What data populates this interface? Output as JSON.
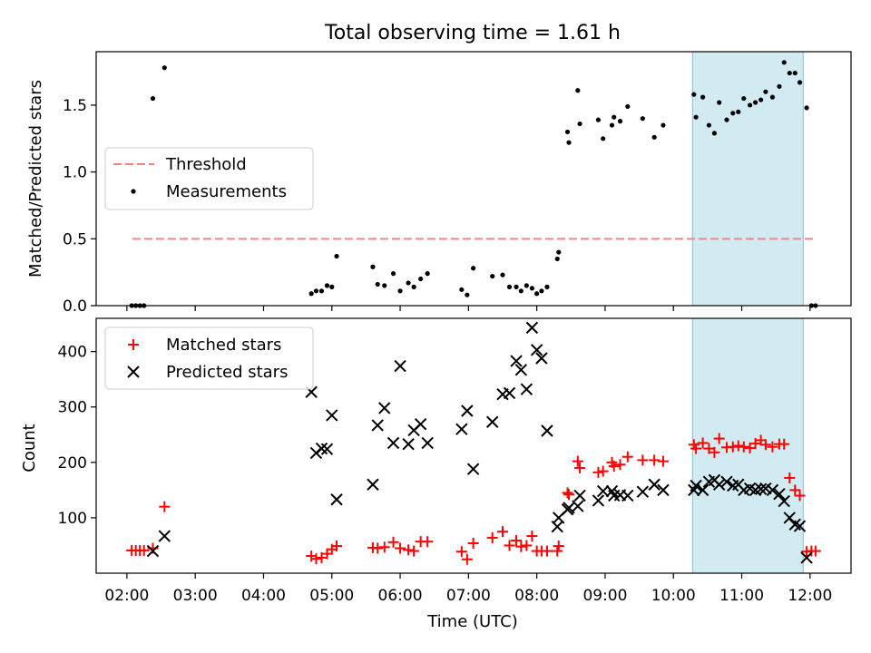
{
  "title": "Total observing time = 1.61 h",
  "chart_data": [
    {
      "type": "scatter",
      "ylabel": "Matched/Predicted stars",
      "xlim": [
        1.55,
        12.6
      ],
      "ylim": [
        0.0,
        1.9
      ],
      "yticks": [
        0.0,
        0.5,
        1.0,
        1.5
      ],
      "ytick_labels": [
        "0.0",
        "0.5",
        "1.0",
        "1.5"
      ],
      "grid": false,
      "legend_location": "center-left",
      "threshold": {
        "name": "Threshold",
        "value": 0.5,
        "x_range": [
          2.08,
          12.08
        ],
        "color": "#ff7f7f",
        "style": "dashed"
      },
      "shaded_region": {
        "x_range": [
          10.28,
          11.9
        ],
        "color": "#add8e6"
      },
      "series": [
        {
          "name": "Measurements",
          "marker": "dot",
          "color": "#000000",
          "points": [
            [
              2.07,
              0.0
            ],
            [
              2.13,
              0.0
            ],
            [
              2.19,
              0.0
            ],
            [
              2.25,
              0.0
            ],
            [
              2.38,
              1.55
            ],
            [
              2.55,
              1.78
            ],
            [
              4.7,
              0.09
            ],
            [
              4.77,
              0.11
            ],
            [
              4.85,
              0.11
            ],
            [
              4.93,
              0.15
            ],
            [
              5.0,
              0.14
            ],
            [
              5.07,
              0.37
            ],
            [
              5.6,
              0.29
            ],
            [
              5.67,
              0.16
            ],
            [
              5.77,
              0.15
            ],
            [
              5.9,
              0.24
            ],
            [
              6.0,
              0.11
            ],
            [
              6.12,
              0.17
            ],
            [
              6.2,
              0.14
            ],
            [
              6.3,
              0.2
            ],
            [
              6.4,
              0.24
            ],
            [
              6.9,
              0.12
            ],
            [
              6.98,
              0.08
            ],
            [
              7.07,
              0.28
            ],
            [
              7.35,
              0.22
            ],
            [
              7.5,
              0.23
            ],
            [
              7.6,
              0.14
            ],
            [
              7.7,
              0.14
            ],
            [
              7.77,
              0.11
            ],
            [
              7.85,
              0.15
            ],
            [
              7.93,
              0.13
            ],
            [
              8.0,
              0.09
            ],
            [
              8.07,
              0.11
            ],
            [
              8.15,
              0.14
            ],
            [
              8.3,
              0.35
            ],
            [
              8.32,
              0.4
            ],
            [
              8.45,
              1.3
            ],
            [
              8.47,
              1.22
            ],
            [
              8.6,
              1.61
            ],
            [
              8.63,
              1.36
            ],
            [
              8.9,
              1.39
            ],
            [
              8.97,
              1.25
            ],
            [
              9.1,
              1.35
            ],
            [
              9.13,
              1.41
            ],
            [
              9.22,
              1.38
            ],
            [
              9.33,
              1.49
            ],
            [
              9.55,
              1.4
            ],
            [
              9.72,
              1.26
            ],
            [
              9.85,
              1.35
            ],
            [
              10.3,
              1.58
            ],
            [
              10.33,
              1.41
            ],
            [
              10.43,
              1.56
            ],
            [
              10.52,
              1.35
            ],
            [
              10.6,
              1.29
            ],
            [
              10.67,
              1.52
            ],
            [
              10.78,
              1.39
            ],
            [
              10.87,
              1.44
            ],
            [
              10.95,
              1.45
            ],
            [
              11.03,
              1.55
            ],
            [
              11.12,
              1.5
            ],
            [
              11.2,
              1.52
            ],
            [
              11.28,
              1.54
            ],
            [
              11.35,
              1.6
            ],
            [
              11.45,
              1.56
            ],
            [
              11.55,
              1.64
            ],
            [
              11.62,
              1.82
            ],
            [
              11.7,
              1.74
            ],
            [
              11.78,
              1.74
            ],
            [
              11.85,
              1.67
            ],
            [
              11.95,
              1.48
            ],
            [
              12.02,
              0.0
            ],
            [
              12.08,
              0.0
            ]
          ]
        }
      ]
    },
    {
      "type": "scatter",
      "xlabel": "Time (UTC)",
      "ylabel": "Count",
      "xlim": [
        1.55,
        12.6
      ],
      "ylim": [
        0,
        460
      ],
      "yticks": [
        100,
        200,
        300,
        400
      ],
      "ytick_labels": [
        "100",
        "200",
        "300",
        "400"
      ],
      "xticks": [
        2,
        3,
        4,
        5,
        6,
        7,
        8,
        9,
        10,
        11,
        12
      ],
      "xtick_labels": [
        "02:00",
        "03:00",
        "04:00",
        "05:00",
        "06:00",
        "07:00",
        "08:00",
        "09:00",
        "10:00",
        "11:00",
        "12:00"
      ],
      "grid": false,
      "legend_location": "top-left",
      "shaded_region": {
        "x_range": [
          10.28,
          11.9
        ],
        "color": "#add8e6"
      },
      "series": [
        {
          "name": "Matched stars",
          "marker": "plus",
          "color": "#ff0000",
          "points": [
            [
              2.07,
              41
            ],
            [
              2.13,
              41
            ],
            [
              2.19,
              41
            ],
            [
              2.25,
              41
            ],
            [
              2.38,
              45
            ],
            [
              2.55,
              120
            ],
            [
              4.7,
              31
            ],
            [
              4.77,
              26
            ],
            [
              4.85,
              28
            ],
            [
              4.93,
              35
            ],
            [
              5.0,
              43
            ],
            [
              5.07,
              49
            ],
            [
              5.6,
              46
            ],
            [
              5.67,
              45
            ],
            [
              5.77,
              47
            ],
            [
              5.9,
              56
            ],
            [
              6.0,
              45
            ],
            [
              6.12,
              42
            ],
            [
              6.2,
              40
            ],
            [
              6.3,
              57
            ],
            [
              6.4,
              57
            ],
            [
              6.9,
              39
            ],
            [
              6.98,
              25
            ],
            [
              7.07,
              54
            ],
            [
              7.35,
              64
            ],
            [
              7.5,
              75
            ],
            [
              7.6,
              50
            ],
            [
              7.7,
              59
            ],
            [
              7.77,
              48
            ],
            [
              7.85,
              50
            ],
            [
              7.93,
              67
            ],
            [
              8.0,
              40
            ],
            [
              8.07,
              40
            ],
            [
              8.15,
              40
            ],
            [
              8.3,
              40
            ],
            [
              8.32,
              49
            ],
            [
              8.45,
              145
            ],
            [
              8.47,
              142
            ],
            [
              8.6,
              202
            ],
            [
              8.63,
              190
            ],
            [
              8.9,
              182
            ],
            [
              8.97,
              184
            ],
            [
              9.1,
              200
            ],
            [
              9.13,
              193
            ],
            [
              9.22,
              196
            ],
            [
              9.33,
              210
            ],
            [
              9.55,
              204
            ],
            [
              9.72,
              204
            ],
            [
              9.85,
              202
            ],
            [
              10.3,
              232
            ],
            [
              10.33,
              225
            ],
            [
              10.43,
              235
            ],
            [
              10.52,
              225
            ],
            [
              10.6,
              218
            ],
            [
              10.67,
              243
            ],
            [
              10.78,
              227
            ],
            [
              10.87,
              228
            ],
            [
              10.95,
              230
            ],
            [
              11.03,
              228
            ],
            [
              11.12,
              226
            ],
            [
              11.2,
              234
            ],
            [
              11.28,
              240
            ],
            [
              11.35,
              232
            ],
            [
              11.45,
              228
            ],
            [
              11.55,
              233
            ],
            [
              11.62,
              233
            ],
            [
              11.7,
              172
            ],
            [
              11.78,
              150
            ],
            [
              11.85,
              140
            ],
            [
              11.95,
              39
            ],
            [
              12.02,
              40
            ],
            [
              12.08,
              40
            ]
          ]
        },
        {
          "name": "Predicted stars",
          "marker": "x",
          "color": "#000000",
          "points": [
            [
              2.38,
              40
            ],
            [
              2.55,
              67
            ],
            [
              4.7,
              327
            ],
            [
              4.77,
              217
            ],
            [
              4.85,
              225
            ],
            [
              4.93,
              224
            ],
            [
              5.0,
              285
            ],
            [
              5.07,
              133
            ],
            [
              5.6,
              160
            ],
            [
              5.67,
              267
            ],
            [
              5.77,
              298
            ],
            [
              5.9,
              235
            ],
            [
              6.0,
              374
            ],
            [
              6.12,
              233
            ],
            [
              6.2,
              258
            ],
            [
              6.3,
              269
            ],
            [
              6.4,
              235
            ],
            [
              6.9,
              260
            ],
            [
              6.98,
              293
            ],
            [
              7.07,
              188
            ],
            [
              7.35,
              273
            ],
            [
              7.5,
              323
            ],
            [
              7.6,
              325
            ],
            [
              7.7,
              383
            ],
            [
              7.77,
              367
            ],
            [
              7.85,
              332
            ],
            [
              7.93,
              443
            ],
            [
              8.0,
              403
            ],
            [
              8.07,
              388
            ],
            [
              8.15,
              257
            ],
            [
              8.3,
              84
            ],
            [
              8.32,
              100
            ],
            [
              8.45,
              115
            ],
            [
              8.47,
              118
            ],
            [
              8.6,
              121
            ],
            [
              8.63,
              140
            ],
            [
              8.9,
              131
            ],
            [
              8.97,
              148
            ],
            [
              9.1,
              148
            ],
            [
              9.13,
              140
            ],
            [
              9.22,
              141
            ],
            [
              9.33,
              140
            ],
            [
              9.55,
              147
            ],
            [
              9.72,
              160
            ],
            [
              9.85,
              150
            ],
            [
              10.3,
              150
            ],
            [
              10.33,
              158
            ],
            [
              10.43,
              150
            ],
            [
              10.52,
              165
            ],
            [
              10.6,
              168
            ],
            [
              10.67,
              160
            ],
            [
              10.78,
              165
            ],
            [
              10.87,
              158
            ],
            [
              10.95,
              160
            ],
            [
              11.03,
              150
            ],
            [
              11.12,
              153
            ],
            [
              11.2,
              150
            ],
            [
              11.28,
              152
            ],
            [
              11.35,
              153
            ],
            [
              11.45,
              150
            ],
            [
              11.55,
              143
            ],
            [
              11.62,
              130
            ],
            [
              11.7,
              100
            ],
            [
              11.78,
              88
            ],
            [
              11.85,
              85
            ],
            [
              11.95,
              28
            ]
          ]
        }
      ]
    }
  ]
}
